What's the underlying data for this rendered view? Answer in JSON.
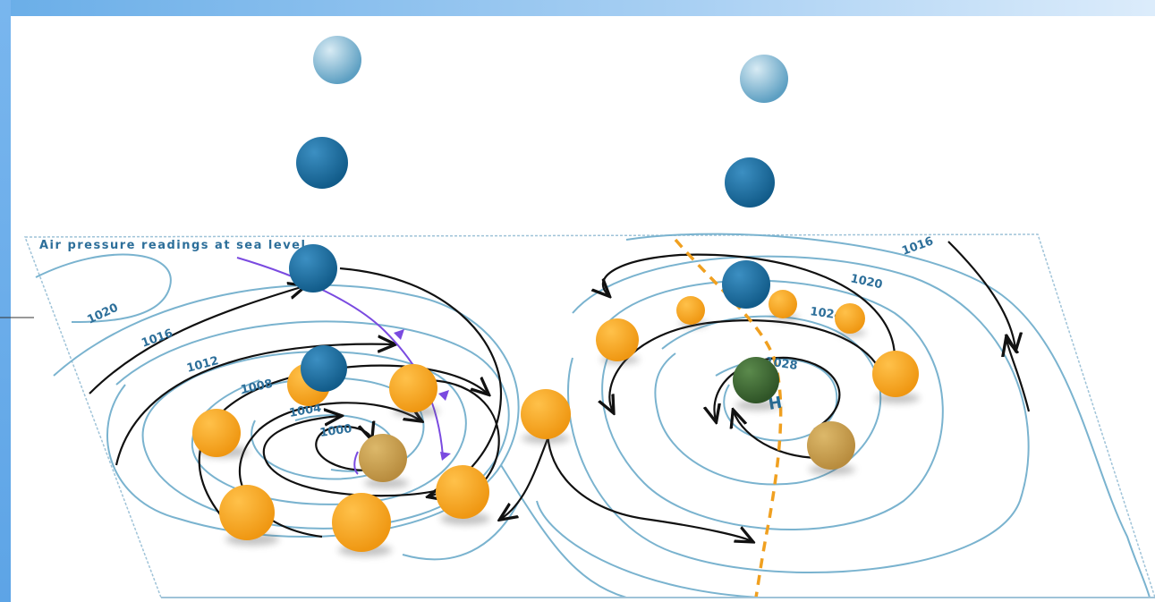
{
  "map": {
    "title": "Air pressure readings at sea level",
    "isobars": {
      "left": [
        "1020",
        "1016",
        "1012",
        "1008",
        "1004",
        "1000"
      ],
      "right": [
        "1020",
        "1024",
        "1028",
        "1016"
      ]
    },
    "high_marker": "H"
  },
  "colors": {
    "isobar": "#7ab3cf",
    "isobar_label": "#2d6f9a",
    "wind_arrow": "#111111",
    "warm_front": "#7a4ae0",
    "trough_line": "#f0a020",
    "sphere_blue": "#1f6f9f",
    "sphere_light_blue": "#7ab6d4",
    "sphere_orange": "#f7a51b",
    "sphere_tan": "#c9a253",
    "sphere_green": "#3f6b35",
    "top_band": "#6aaee8",
    "left_band": "#6aaee8"
  }
}
